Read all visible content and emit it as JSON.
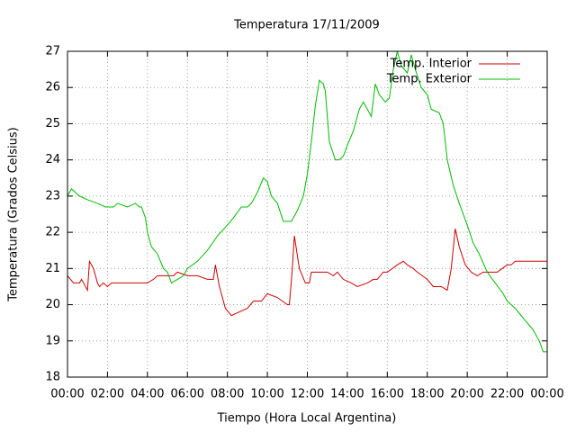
{
  "chart_data": {
    "type": "line",
    "title": "Temperatura 17/11/2009",
    "x_label": "Tiempo (Hora Local Argentina)",
    "y_label": "Temperatura (Grados Celsius)",
    "xlim": [
      0,
      24
    ],
    "ylim": [
      18,
      27
    ],
    "xticks": [
      {
        "value": 0,
        "label": "00:00"
      },
      {
        "value": 2,
        "label": "02:00"
      },
      {
        "value": 4,
        "label": "04:00"
      },
      {
        "value": 6,
        "label": "06:00"
      },
      {
        "value": 8,
        "label": "08:00"
      },
      {
        "value": 10,
        "label": "10:00"
      },
      {
        "value": 12,
        "label": "12:00"
      },
      {
        "value": 14,
        "label": "14:00"
      },
      {
        "value": 16,
        "label": "16:00"
      },
      {
        "value": 18,
        "label": "18:00"
      },
      {
        "value": 20,
        "label": "20:00"
      },
      {
        "value": 22,
        "label": "22:00"
      },
      {
        "value": 24,
        "label": "00:00"
      }
    ],
    "yticks": [
      18,
      19,
      20,
      21,
      22,
      23,
      24,
      25,
      26,
      27
    ],
    "grid": true,
    "legend": "top-right",
    "series": [
      {
        "name": "Temp. Interior",
        "color": "#cc0000",
        "x": [
          0,
          0.3,
          0.6,
          0.7,
          0.9,
          1.0,
          1.1,
          1.3,
          1.5,
          1.6,
          1.8,
          2.0,
          2.2,
          2.5,
          3.0,
          3.5,
          4.0,
          4.3,
          4.5,
          5.0,
          5.3,
          5.5,
          6.0,
          6.5,
          7.0,
          7.3,
          7.4,
          7.6,
          7.9,
          8.2,
          8.6,
          9.0,
          9.3,
          9.7,
          10.0,
          10.5,
          11.0,
          11.1,
          11.25,
          11.35,
          11.6,
          11.9,
          12.1,
          12.2,
          13.0,
          13.3,
          13.5,
          13.8,
          14.2,
          14.5,
          15.0,
          15.3,
          15.5,
          15.8,
          16.0,
          16.5,
          16.8,
          17.0,
          17.3,
          17.5,
          18.0,
          18.3,
          18.7,
          19.0,
          19.2,
          19.4,
          19.6,
          19.9,
          20.2,
          20.5,
          20.8,
          21.5,
          22.0,
          22.2,
          22.4,
          24.0
        ],
        "values": [
          20.8,
          20.6,
          20.6,
          20.7,
          20.5,
          20.4,
          21.2,
          21.0,
          20.6,
          20.5,
          20.6,
          20.5,
          20.6,
          20.6,
          20.6,
          20.6,
          20.6,
          20.7,
          20.8,
          20.8,
          20.8,
          20.9,
          20.8,
          20.8,
          20.7,
          20.7,
          21.1,
          20.5,
          19.9,
          19.7,
          19.8,
          19.9,
          20.1,
          20.1,
          20.3,
          20.2,
          20.0,
          20.0,
          21.0,
          21.9,
          21.0,
          20.6,
          20.6,
          20.9,
          20.9,
          20.8,
          20.9,
          20.7,
          20.6,
          20.5,
          20.6,
          20.7,
          20.7,
          20.9,
          20.9,
          21.1,
          21.2,
          21.1,
          21.0,
          20.9,
          20.7,
          20.5,
          20.5,
          20.4,
          21.0,
          22.1,
          21.6,
          21.1,
          20.9,
          20.8,
          20.9,
          20.9,
          21.1,
          21.1,
          21.2,
          21.2
        ]
      },
      {
        "name": "Temp. Exterior",
        "color": "#00bb00",
        "x": [
          0,
          0.2,
          0.4,
          0.6,
          1.0,
          1.5,
          1.9,
          2.3,
          2.5,
          3.0,
          3.4,
          3.6,
          3.7,
          3.9,
          4.0,
          4.2,
          4.5,
          4.8,
          5.0,
          5.2,
          5.5,
          5.8,
          6.0,
          6.5,
          7.0,
          7.5,
          8.0,
          8.3,
          8.7,
          9.0,
          9.2,
          9.5,
          9.8,
          10.0,
          10.2,
          10.5,
          10.8,
          11.2,
          11.5,
          11.8,
          12.0,
          12.2,
          12.4,
          12.6,
          12.8,
          12.9,
          13.1,
          13.4,
          13.6,
          13.8,
          14.0,
          14.3,
          14.6,
          14.8,
          15.0,
          15.2,
          15.4,
          15.6,
          15.9,
          16.1,
          16.3,
          16.5,
          16.7,
          17.0,
          17.2,
          17.4,
          17.7,
          18.0,
          18.2,
          18.6,
          18.8,
          19.0,
          19.3,
          19.6,
          20.0,
          20.3,
          20.6,
          21.0,
          21.4,
          21.8,
          22.0,
          22.4,
          22.7,
          23.0,
          23.3,
          23.6,
          23.8,
          24.0
        ],
        "values": [
          23.0,
          23.2,
          23.1,
          23.0,
          22.9,
          22.8,
          22.7,
          22.7,
          22.8,
          22.7,
          22.8,
          22.7,
          22.7,
          22.4,
          22.0,
          21.6,
          21.4,
          21.0,
          20.9,
          20.6,
          20.7,
          20.8,
          21.0,
          21.2,
          21.5,
          21.9,
          22.2,
          22.4,
          22.7,
          22.7,
          22.8,
          23.1,
          23.5,
          23.4,
          23.0,
          22.8,
          22.3,
          22.3,
          22.6,
          23.0,
          23.6,
          24.5,
          25.5,
          26.2,
          26.1,
          25.9,
          24.5,
          24.0,
          24.0,
          24.1,
          24.4,
          24.8,
          25.4,
          25.6,
          25.4,
          25.2,
          26.1,
          25.8,
          25.6,
          25.7,
          26.5,
          27.0,
          26.6,
          26.4,
          26.9,
          26.5,
          26.0,
          25.8,
          25.4,
          25.3,
          25.0,
          24.0,
          23.3,
          22.8,
          22.2,
          21.7,
          21.4,
          20.9,
          20.6,
          20.3,
          20.1,
          19.9,
          19.7,
          19.5,
          19.3,
          19.0,
          18.7,
          18.7
        ]
      }
    ]
  }
}
